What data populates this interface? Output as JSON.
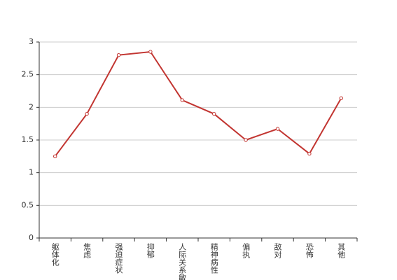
{
  "chart_data": {
    "type": "line",
    "categories": [
      "躯体化",
      "焦虑",
      "强迫症状",
      "抑郁",
      "人际关系敏感",
      "精神病性",
      "偏执",
      "敌对",
      "恐怖",
      "其他"
    ],
    "values": [
      1.25,
      1.9,
      2.8,
      2.85,
      2.11,
      1.9,
      1.5,
      1.67,
      1.29,
      2.14
    ],
    "color": "#c23531",
    "ylim": [
      0,
      3
    ],
    "yticks": [
      0,
      0.5,
      1,
      1.5,
      2,
      2.5,
      3
    ],
    "grid": true
  }
}
